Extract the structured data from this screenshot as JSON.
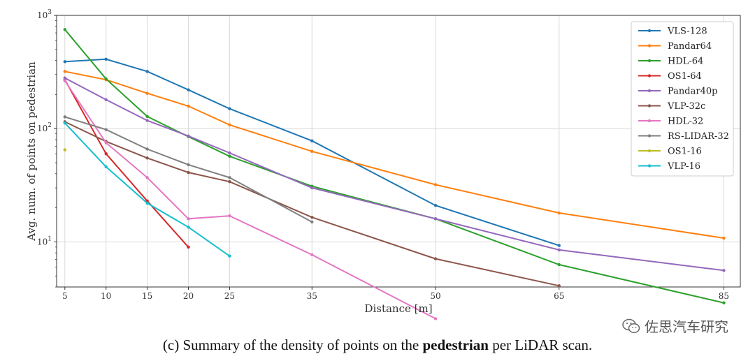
{
  "chart_data": {
    "type": "line",
    "xlabel": "Distance [m]",
    "ylabel": "Avg. num. of points on pedestrian",
    "xlim": [
      4,
      87
    ],
    "ylim": [
      4,
      1000
    ],
    "yscale": "log",
    "grid": true,
    "legend_position": "top-right",
    "x_ticks": [
      5,
      10,
      15,
      20,
      25,
      35,
      50,
      65,
      85
    ],
    "y_ticks": [
      {
        "value": 10,
        "label": "10",
        "sup": "1"
      },
      {
        "value": 100,
        "label": "10",
        "sup": "2"
      },
      {
        "value": 1000,
        "label": "10",
        "sup": "3"
      }
    ],
    "series": [
      {
        "name": "VLS-128",
        "color": "#1f77b4",
        "points": [
          [
            5,
            390
          ],
          [
            10,
            410
          ],
          [
            15,
            320
          ],
          [
            20,
            220
          ],
          [
            25,
            150
          ],
          [
            35,
            78
          ],
          [
            50,
            21
          ],
          [
            65,
            9.3
          ]
        ]
      },
      {
        "name": "Pandar64",
        "color": "#ff7f0e",
        "points": [
          [
            5,
            320
          ],
          [
            10,
            270
          ],
          [
            15,
            205
          ],
          [
            20,
            158
          ],
          [
            25,
            108
          ],
          [
            35,
            63
          ],
          [
            50,
            32
          ],
          [
            65,
            18
          ],
          [
            85,
            10.8
          ]
        ]
      },
      {
        "name": "HDL-64",
        "color": "#2ca02c",
        "points": [
          [
            5,
            750
          ],
          [
            10,
            275
          ],
          [
            15,
            128
          ],
          [
            20,
            85
          ],
          [
            25,
            57
          ],
          [
            35,
            31
          ],
          [
            50,
            16
          ],
          [
            65,
            6.3
          ],
          [
            85,
            2.9
          ]
        ]
      },
      {
        "name": "OS1-64",
        "color": "#d62728",
        "points": [
          [
            5,
            270
          ],
          [
            10,
            60
          ],
          [
            15,
            23
          ],
          [
            20,
            9
          ]
        ]
      },
      {
        "name": "Pandar40p",
        "color": "#9467bd",
        "points": [
          [
            5,
            280
          ],
          [
            10,
            180
          ],
          [
            15,
            118
          ],
          [
            20,
            86
          ],
          [
            25,
            61
          ],
          [
            35,
            30
          ],
          [
            50,
            16
          ],
          [
            65,
            8.5
          ],
          [
            85,
            5.6
          ]
        ]
      },
      {
        "name": "VLP-32c",
        "color": "#8c564b",
        "points": [
          [
            5,
            115
          ],
          [
            10,
            77
          ],
          [
            15,
            55
          ],
          [
            20,
            41
          ],
          [
            25,
            34
          ],
          [
            35,
            16.5
          ],
          [
            50,
            7.1
          ],
          [
            65,
            4.1
          ]
        ]
      },
      {
        "name": "HDL-32",
        "color": "#e377c2",
        "points": [
          [
            5,
            265
          ],
          [
            10,
            75
          ],
          [
            15,
            37
          ],
          [
            20,
            16
          ],
          [
            25,
            17
          ],
          [
            35,
            7.7
          ],
          [
            50,
            2.1
          ]
        ]
      },
      {
        "name": "RS-LIDAR-32",
        "color": "#7f7f7f",
        "points": [
          [
            5,
            127
          ],
          [
            10,
            98
          ],
          [
            15,
            66
          ],
          [
            20,
            48
          ],
          [
            25,
            37
          ],
          [
            35,
            15
          ]
        ]
      },
      {
        "name": "OS1-16",
        "color": "#bcbd22",
        "points": [
          [
            5,
            65
          ]
        ]
      },
      {
        "name": "VLP-16",
        "color": "#17becf",
        "points": [
          [
            5,
            112
          ],
          [
            10,
            46
          ],
          [
            15,
            22
          ],
          [
            20,
            13.5
          ],
          [
            25,
            7.5
          ]
        ]
      }
    ]
  },
  "caption": {
    "prefix": "(c) Summary of the density of points on the ",
    "bold": "pedestrian",
    "suffix": " per LiDAR scan."
  },
  "watermark": {
    "text": "佐思汽车研究",
    "icon": "wechat-icon"
  }
}
